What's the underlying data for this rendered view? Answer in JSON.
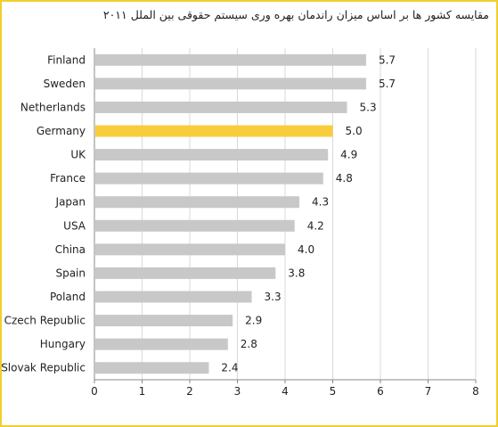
{
  "chart_data": {
    "type": "bar",
    "orientation": "horizontal",
    "title": "مقایسه کشور ها بر اساس میزان راندمان بهره وری سیستم حقوقی بین الملل ۲۰۱۱",
    "categories": [
      "Finland",
      "Sweden",
      "Netherlands",
      "Germany",
      "UK",
      "France",
      "Japan",
      "USA",
      "China",
      "Spain",
      "Poland",
      "Czech Republic",
      "Hungary",
      "Slovak Republic"
    ],
    "values": [
      5.7,
      5.7,
      5.3,
      5.0,
      4.9,
      4.8,
      4.3,
      4.2,
      4.0,
      3.8,
      3.3,
      2.9,
      2.8,
      2.4
    ],
    "value_labels": [
      "5.7",
      "5.7",
      "5.3",
      "5.0",
      "4.9",
      "4.8",
      "4.3",
      "4.2",
      "4.0",
      "3.8",
      "3.3",
      "2.9",
      "2.8",
      "2.4"
    ],
    "highlight": "Germany",
    "xlim": [
      0,
      8
    ],
    "xticks": [
      "0",
      "1",
      "2",
      "3",
      "4",
      "5",
      "6",
      "7",
      "8"
    ],
    "grid": true,
    "colors": {
      "bar": "#c8c8c8",
      "highlight": "#f8cd3b",
      "grid": "#d9d9d9",
      "border": "#f1ce2d"
    }
  }
}
